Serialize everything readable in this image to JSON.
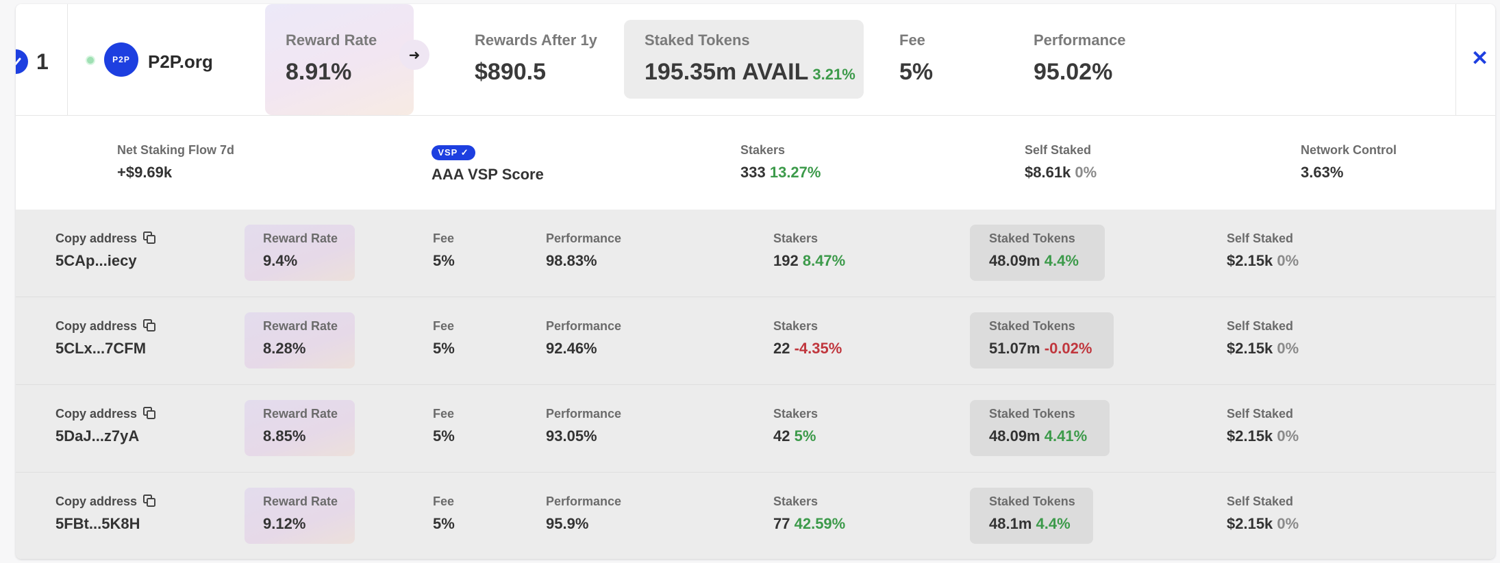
{
  "header": {
    "rank": "1",
    "logo_text": "P2P",
    "name": "P2P.org",
    "reward_rate": {
      "label": "Reward Rate",
      "value": "8.91%"
    },
    "arrow": "➜",
    "rewards_after": {
      "label": "Rewards After 1y",
      "value": "$890.5"
    },
    "staked_tokens": {
      "label": "Staked Tokens",
      "value": "195.35m AVAIL",
      "change": "3.21%"
    },
    "fee": {
      "label": "Fee",
      "value": "5%"
    },
    "performance": {
      "label": "Performance",
      "value": "95.02%"
    },
    "close_glyph": "✕"
  },
  "summary": {
    "net_flow": {
      "label": "Net Staking Flow 7d",
      "value": "+$9.69k"
    },
    "vsp": {
      "badge": "VSP ✓",
      "label": "AAA VSP Score"
    },
    "stakers": {
      "label": "Stakers",
      "value": "333",
      "change": "13.27%"
    },
    "self_staked": {
      "label": "Self Staked",
      "value": "$8.61k",
      "change": "0%"
    },
    "network_control": {
      "label": "Network Control",
      "value": "3.63%"
    }
  },
  "labels": {
    "copy": "Copy address",
    "reward_rate": "Reward Rate",
    "fee": "Fee",
    "performance": "Performance",
    "stakers": "Stakers",
    "staked_tokens": "Staked Tokens",
    "self_staked": "Self Staked"
  },
  "rows": [
    {
      "address": "5CAp...iecy",
      "reward_rate": "9.4%",
      "fee": "5%",
      "performance": "98.83%",
      "stakers": "192",
      "stakers_change": "8.47%",
      "staked": "48.09m",
      "staked_change": "4.4%",
      "self_staked": "$2.15k",
      "self_change": "0%"
    },
    {
      "address": "5CLx...7CFM",
      "reward_rate": "8.28%",
      "fee": "5%",
      "performance": "92.46%",
      "stakers": "22",
      "stakers_change": "-4.35%",
      "staked": "51.07m",
      "staked_change": "-0.02%",
      "self_staked": "$2.15k",
      "self_change": "0%"
    },
    {
      "address": "5DaJ...z7yA",
      "reward_rate": "8.85%",
      "fee": "5%",
      "performance": "93.05%",
      "stakers": "42",
      "stakers_change": "5%",
      "staked": "48.09m",
      "staked_change": "4.41%",
      "self_staked": "$2.15k",
      "self_change": "0%"
    },
    {
      "address": "5FBt...5K8H",
      "reward_rate": "9.12%",
      "fee": "5%",
      "performance": "95.9%",
      "stakers": "77",
      "stakers_change": "42.59%",
      "staked": "48.1m",
      "staked_change": "4.4%",
      "self_staked": "$2.15k",
      "self_change": "0%"
    }
  ],
  "colors": {
    "accent": "#1d3fe0",
    "positive": "#3c9a4a",
    "negative": "#c0363d"
  },
  "icons": [
    "check-icon",
    "arrow-right-icon",
    "close-icon",
    "copy-icon",
    "status-dot-icon"
  ]
}
